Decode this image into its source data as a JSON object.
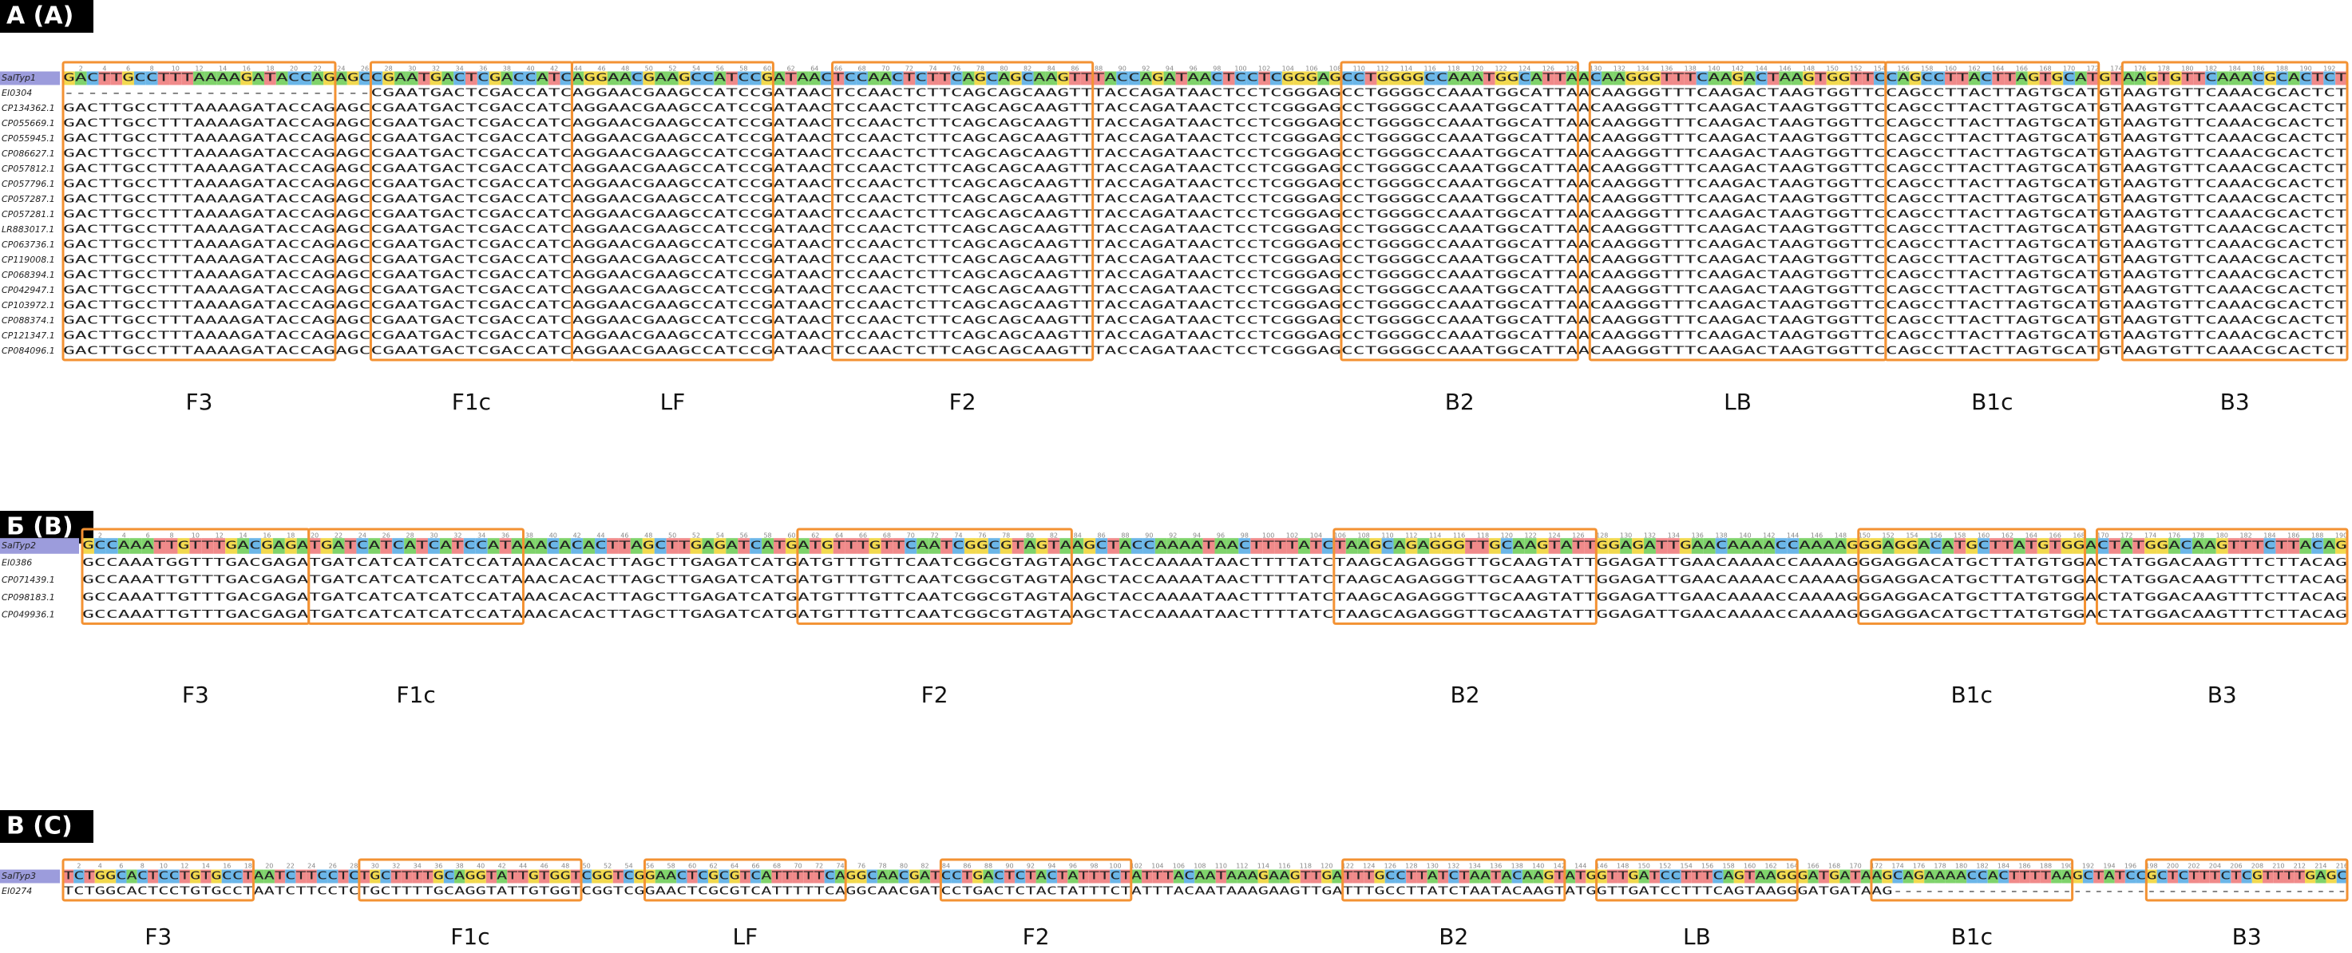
{
  "panels": [
    {
      "label": "A (A)",
      "ruler": [
        2,
        4,
        6,
        8,
        10,
        12,
        14,
        16,
        18,
        20,
        22,
        24,
        26,
        28,
        30,
        32,
        34,
        36,
        38,
        40,
        42,
        44,
        46,
        48,
        50,
        52,
        54,
        56,
        58,
        60,
        62,
        64,
        66,
        68,
        70,
        72,
        74,
        76,
        78,
        80,
        82,
        84,
        86,
        88,
        90,
        92,
        94,
        96,
        98,
        100,
        102,
        104,
        106,
        108,
        110,
        112,
        114,
        116,
        118,
        120,
        122,
        124,
        126,
        128,
        130,
        132,
        134,
        136,
        138,
        140,
        142,
        144,
        146,
        148,
        150,
        152,
        154,
        156,
        158,
        160,
        162,
        164,
        166,
        168,
        170,
        172,
        174,
        176,
        178,
        180,
        182,
        184,
        186,
        188,
        190,
        192
      ],
      "rows": [
        {
          "name": "SalTyp1",
          "seq": "GACTTGCCTTTAAAAGATACCAGAGCCGAATGACTCGACCATCAGGAACGAAGCCATCCGATAACTCCAACTCTTCAGCAGCAAGTTTACCAGATAACTCCTCGGGAGCCTGGGGCCAAATGGCATTAACAAGGGTTTCAAGACTAAGTGGTTCCAGCCTTACTTAGTGCATGTAAGTGTTCAAACGCACTCT"
        },
        {
          "name": "EI0304",
          "seq": "--------------------------CGAATGACTCGACCATCAGGAACGAAGCCATCCGATAACTCCAACTCTTCAGCAGCAAGTTTACCAGATAACTCCTCGGGAGCCTGGGGCCAAATGGCATTAACAAGGGTTTCAAGACTAAGTGGTTCCAGCCTTACTTAGTGCATGTAAGTGTTCAAACGCACTCT"
        },
        {
          "name": "CP134362.1",
          "seq": "GACTTGCCTTTAAAAGATACCAGAGCCGAATGACTCGACCATCAGGAACGAAGCCATCCGATAACTCCAACTCTTCAGCAGCAAGTTTACCAGATAACTCCTCGGGAGCCTGGGGCCAAATGGCATTAACAAGGGTTTCAAGACTAAGTGGTTCCAGCCTTACTTAGTGCATGTAAGTGTTCAAACGCACTCT"
        },
        {
          "name": "CP055669.1",
          "seq": "GACTTGCCTTTAAAAGATACCAGAGCCGAATGACTCGACCATCAGGAACGAAGCCATCCGATAACTCCAACTCTTCAGCAGCAAGTTTACCAGATAACTCCTCGGGAGCCTGGGGCCAAATGGCATTAACAAGGGTTTCAAGACTAAGTGGTTCCAGCCTTACTTAGTGCATGTAAGTGTTCAAACGCACTCT"
        },
        {
          "name": "CP055945.1",
          "seq": "GACTTGCCTTTAAAAGATACCAGAGCCGAATGACTCGACCATCAGGAACGAAGCCATCCGATAACTCCAACTCTTCAGCAGCAAGTTTACCAGATAACTCCTCGGGAGCCTGGGGCCAAATGGCATTAACAAGGGTTTCAAGACTAAGTGGTTCCAGCCTTACTTAGTGCATGTAAGTGTTCAAACGCACTCT"
        },
        {
          "name": "CP086627.1",
          "seq": "GACTTGCCTTTAAAAGATACCAGAGCCGAATGACTCGACCATCAGGAACGAAGCCATCCGATAACTCCAACTCTTCAGCAGCAAGTTTACCAGATAACTCCTCGGGAGCCTGGGGCCAAATGGCATTAACAAGGGTTTCAAGACTAAGTGGTTCCAGCCTTACTTAGTGCATGTAAGTGTTCAAACGCACTCT"
        },
        {
          "name": "CP057812.1",
          "seq": "GACTTGCCTTTAAAAGATACCAGAGCCGAATGACTCGACCATCAGGAACGAAGCCATCCGATAACTCCAACTCTTCAGCAGCAAGTTTACCAGATAACTCCTCGGGAGCCTGGGGCCAAATGGCATTAACAAGGGTTTCAAGACTAAGTGGTTCCAGCCTTACTTAGTGCATGTAAGTGTTCAAACGCACTCT"
        },
        {
          "name": "CP057796.1",
          "seq": "GACTTGCCTTTAAAAGATACCAGAGCCGAATGACTCGACCATCAGGAACGAAGCCATCCGATAACTCCAACTCTTCAGCAGCAAGTTTACCAGATAACTCCTCGGGAGCCTGGGGCCAAATGGCATTAACAAGGGTTTCAAGACTAAGTGGTTCCAGCCTTACTTAGTGCATGTAAGTGTTCAAACGCACTCT"
        },
        {
          "name": "CP057287.1",
          "seq": "GACTTGCCTTTAAAAGATACCAGAGCCGAATGACTCGACCATCAGGAACGAAGCCATCCGATAACTCCAACTCTTCAGCAGCAAGTTTACCAGATAACTCCTCGGGAGCCTGGGGCCAAATGGCATTAACAAGGGTTTCAAGACTAAGTGGTTCCAGCCTTACTTAGTGCATGTAAGTGTTCAAACGCACTCT"
        },
        {
          "name": "CP057281.1",
          "seq": "GACTTGCCTTTAAAAGATACCAGAGCCGAATGACTCGACCATCAGGAACGAAGCCATCCGATAACTCCAACTCTTCAGCAGCAAGTTTACCAGATAACTCCTCGGGAGCCTGGGGCCAAATGGCATTAACAAGGGTTTCAAGACTAAGTGGTTCCAGCCTTACTTAGTGCATGTAAGTGTTCAAACGCACTCT"
        },
        {
          "name": "LR883017.1",
          "seq": "GACTTGCCTTTAAAAGATACCAGAGCCGAATGACTCGACCATCAGGAACGAAGCCATCCGATAACTCCAACTCTTCAGCAGCAAGTTTACCAGATAACTCCTCGGGAGCCTGGGGCCAAATGGCATTAACAAGGGTTTCAAGACTAAGTGGTTCCAGCCTTACTTAGTGCATGTAAGTGTTCAAACGCACTCT"
        },
        {
          "name": "CP063736.1",
          "seq": "GACTTGCCTTTAAAAGATACCAGAGCCGAATGACTCGACCATCAGGAACGAAGCCATCCGATAACTCCAACTCTTCAGCAGCAAGTTTACCAGATAACTCCTCGGGAGCCTGGGGCCAAATGGCATTAACAAGGGTTTCAAGACTAAGTGGTTCCAGCCTTACTTAGTGCATGTAAGTGTTCAAACGCACTCT"
        },
        {
          "name": "CP119008.1",
          "seq": "GACTTGCCTTTAAAAGATACCAGAGCCGAATGACTCGACCATCAGGAACGAAGCCATCCGATAACTCCAACTCTTCAGCAGCAAGTTTACCAGATAACTCCTCGGGAGCCTGGGGCCAAATGGCATTAACAAGGGTTTCAAGACTAAGTGGTTCCAGCCTTACTTAGTGCATGTAAGTGTTCAAACGCACTCT"
        },
        {
          "name": "CP068394.1",
          "seq": "GACTTGCCTTTAAAAGATACCAGAGCCGAATGACTCGACCATCAGGAACGAAGCCATCCGATAACTCCAACTCTTCAGCAGCAAGTTTACCAGATAACTCCTCGGGAGCCTGGGGCCAAATGGCATTAACAAGGGTTTCAAGACTAAGTGGTTCCAGCCTTACTTAGTGCATGTAAGTGTTCAAACGCACTCT"
        },
        {
          "name": "CP042947.1",
          "seq": "GACTTGCCTTTAAAAGATACCAGAGCCGAATGACTCGACCATCAGGAACGAAGCCATCCGATAACTCCAACTCTTCAGCAGCAAGTTTACCAGATAACTCCTCGGGAGCCTGGGGCCAAATGGCATTAACAAGGGTTTCAAGACTAAGTGGTTCCAGCCTTACTTAGTGCATGTAAGTGTTCAAACGCACTCT"
        },
        {
          "name": "CP103972.1",
          "seq": "GACTTGCCTTTAAAAGATACCAGAGCCGAATGACTCGACCATCAGGAACGAAGCCATCCGATAACTCCAACTCTTCAGCAGCAAGTTTACCAGATAACTCCTCGGGAGCCTGGGGCCAAATGGCATTAACAAGGGTTTCAAGACTAAGTGGTTCCAGCCTTACTTAGTGCATGTAAGTGTTCAAACGCACTCT"
        },
        {
          "name": "CP088374.1",
          "seq": "GACTTGCCTTTAAAAGATACCAGAGCCGAATGACTCGACCATCAGGAACGAAGCCATCCGATAACTCCAACTCTTCAGCAGCAAGTTTACCAGATAACTCCTCGGGAGCCTGGGGCCAAATGGCATTAACAAGGGTTTCAAGACTAAGTGGTTCCAGCCTTACTTAGTGCATGTAAGTGTTCAAACGCACTCT"
        },
        {
          "name": "CP121347.1",
          "seq": "GACTTGCCTTTAAAAGATACCAGAGCCGAATGACTCGACCATCAGGAACGAAGCCATCCGATAACTCCAACTCTTCAGCAGCAAGTTTACCAGATAACTCCTCGGGAGCCTGGGGCCAAATGGCATTAACAAGGGTTTCAAGACTAAGTGGTTCCAGCCTTACTTAGTGCATGTAAGTGTTCAAACGCACTCT"
        },
        {
          "name": "CP084096.1",
          "seq": "GACTTGCCTTTAAAAGATACCAGAGCCGAATGACTCGACCATCAGGAACGAAGCCATCCGATAACTCCAACTCTTCAGCAGCAAGTTTACCAGATAACTCCTCGGGAGCCTGGGGCCAAATGGCATTAACAAGGGTTTCAAGACTAAGTGGTTCCAGCCTTACTTAGTGCATGTAAGTGTTCAAACGCACTCT"
        }
      ],
      "regions": [
        "F3",
        "F1c",
        "LF",
        "F2",
        "B2",
        "LB",
        "B1c",
        "B3"
      ]
    },
    {
      "label": "Б (B)",
      "ruler": [
        2,
        4,
        6,
        8,
        10,
        12,
        14,
        16,
        18,
        20,
        22,
        24,
        26,
        28,
        30,
        32,
        34,
        36,
        38,
        40,
        42,
        44,
        46,
        48,
        50,
        52,
        54,
        56,
        58,
        60,
        62,
        64,
        66,
        68,
        70,
        72,
        74,
        76,
        78,
        80,
        82,
        84,
        86,
        88,
        90,
        92,
        94,
        96,
        98,
        100,
        102,
        104,
        106,
        108,
        110,
        112,
        114,
        116,
        118,
        120,
        122,
        124,
        126,
        128,
        130,
        132,
        134,
        136,
        138,
        140,
        142,
        144,
        146,
        148,
        150,
        152,
        154,
        156,
        158,
        160,
        162,
        164,
        166,
        168,
        170,
        172,
        174,
        176,
        178,
        180,
        182,
        184,
        186,
        188,
        190
      ],
      "rows": [
        {
          "name": "SalTyp2",
          "seq": "GCCAAATTGTTTGACGAGATGATCATCATCATCCATAAACACACTTAGCTTGAGATCATGATGTTTGTTCAATCGGCGTAGTAAGCTACCAAAATAACTTTTATCTAAGCAGAGGGTTGCAAGTATTGGAGATTGAACAAAACCAAAAGGGAGGACATGCTTATGTGGACTATGGACAAGTTTCTTACAG"
        },
        {
          "name": "EI0386",
          "seq": "GCCAAATGGTTTGACGAGATGATCATCATCATCCATAAACACACTTAGCTTGAGATCATGATGTTTGTTCAATCGGCGTAGTAAGCTACCAAAATAACTTTTATCTAAGCAGAGGGTTGCAAGTATTGGAGATTGAACAAAACCAAAAGGGAGGACATGCTTATGTGGACTATGGACAAGTTTCTTACAG"
        },
        {
          "name": "CP071439.1",
          "seq": "GCCAAATTGTTTGACGAGATGATCATCATCATCCATAAACACACTTAGCTTGAGATCATGATGTTTGTTCAATCGGCGTAGTAAGCTACCAAAATAACTTTTATCTAAGCAGAGGGTTGCAAGTATTGGAGATTGAACAAAACCAAAAGGGAGGACATGCTTATGTGGACTATGGACAAGTTTCTTACAG"
        },
        {
          "name": "CP098183.1",
          "seq": "GCCAAATTGTTTGACGAGATGATCATCATCATCCATAAACACACTTAGCTTGAGATCATGATGTTTGTTCAATCGGCGTAGTAAGCTACCAAAATAACTTTTATCTAAGCAGAGGGTTGCAAGTATTGGAGATTGAACAAAACCAAAAGGGAGGACATGCTTATGTGGACTATGGACAAGTTTCTTACAG"
        },
        {
          "name": "CP049936.1",
          "seq": "GCCAAATTGTTTGACGAGATGATCATCATCATCCATAAACACACTTAGCTTGAGATCATGATGTTTGTTCAATCGGCGTAGTAAGCTACCAAAATAACTTTTATCTAAGCAGAGGGTTGCAAGTATTGGAGATTGAACAAAACCAAAAGGGAGGACATGCTTATGTGGACTATGGACAAGTTTCTTACAG"
        }
      ],
      "regions": [
        "F3",
        "F1c",
        "F2",
        "B2",
        "B1c",
        "B3"
      ]
    },
    {
      "label": "В (C)",
      "ruler": [
        2,
        4,
        6,
        8,
        10,
        12,
        14,
        16,
        18,
        20,
        22,
        24,
        26,
        28,
        30,
        32,
        34,
        36,
        38,
        40,
        42,
        44,
        46,
        48,
        50,
        52,
        54,
        56,
        58,
        60,
        62,
        64,
        66,
        68,
        70,
        72,
        74,
        76,
        78,
        80,
        82,
        84,
        86,
        88,
        90,
        92,
        94,
        96,
        98,
        100,
        102,
        104,
        106,
        108,
        110,
        112,
        114,
        116,
        118,
        120,
        122,
        124,
        126,
        128,
        130,
        132,
        134,
        136,
        138,
        140,
        142,
        144,
        146,
        148,
        150,
        152,
        154,
        156,
        158,
        160,
        162,
        164,
        166,
        168,
        170,
        172,
        174,
        176,
        178,
        180,
        182,
        184,
        186,
        188,
        190,
        192,
        194,
        196,
        198,
        200,
        202,
        204,
        206,
        208,
        210,
        212,
        214,
        216
      ],
      "rows": [
        {
          "name": "SalTyp3",
          "seq": "TCTGGCACTCCTGTGCCTAATCTTCCTCTGCTTTTGCAGGTATTGTGGTCGGTCGGAACTCGCGTCATTTTTCAGGCAACGATCCTGACTCTACTATTTCTATTTACAATAAAGAAGTTGATTTGCCTTATCTAATACAAGTATGGTTGATCCTTTCAGTAAGGGATGATAAGCAGAAAACCACTTTTAAGCTATCCGCTCTTTCTCGTTTTGAGC"
        },
        {
          "name": "EI0274",
          "seq": "TCTGGCACTCCTGTGCCTAATCTTCCTCTGCTTTTGCAGGTATTGTGGTCGGTCGGAACTCGCGTCATTTTTCAGGCAACGATCCTGACTCTACTATTTCTATTTACAATAAAGAAGTTGATTTGCCTTATCTAATACAAGTATGGTTGATCCTTTCAGTAAGGGATGATAAG-------------------------------------------"
        }
      ],
      "regions": [
        "F3",
        "F1c",
        "LF",
        "F2",
        "B2",
        "LB",
        "B1c",
        "B3"
      ]
    }
  ]
}
